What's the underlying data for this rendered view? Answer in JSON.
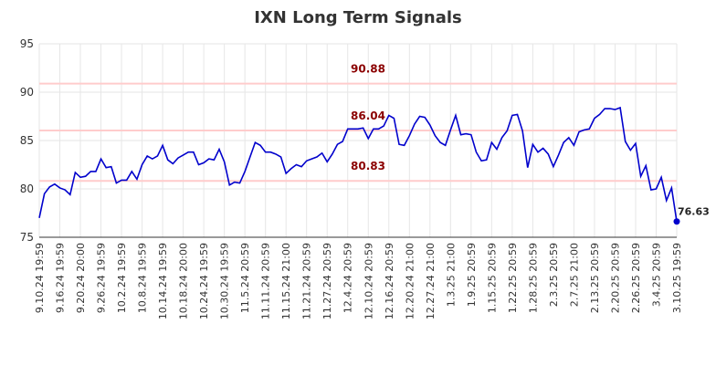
{
  "chart_data": {
    "type": "line",
    "title": "IXN Long Term Signals",
    "categories": [
      "9.10.24 19:59",
      null,
      null,
      null,
      "9.16.24 19:59",
      null,
      null,
      null,
      "9.20.24 20:00",
      null,
      null,
      null,
      "9.26.24 19:59",
      null,
      null,
      null,
      "10.2.24 19:59",
      null,
      null,
      null,
      "10.8.24 19:59",
      null,
      null,
      null,
      "10.14.24 19:59",
      null,
      null,
      null,
      "10.18.24 20:00",
      null,
      null,
      null,
      "10.24.24 19:59",
      null,
      null,
      null,
      "10.30.24 19:59",
      null,
      null,
      null,
      "11.5.24 20:59",
      null,
      null,
      null,
      "11.11.24 20:59",
      null,
      null,
      null,
      "11.15.24 21:00",
      null,
      null,
      null,
      "11.21.24 20:59",
      null,
      null,
      null,
      "11.27.24 20:59",
      null,
      null,
      null,
      "12.4.24 20:59",
      null,
      null,
      null,
      "12.10.24 20:59",
      null,
      null,
      null,
      "12.16.24 20:59",
      null,
      null,
      null,
      "12.20.24 21:00",
      null,
      null,
      null,
      "12.27.24 21:00",
      null,
      null,
      null,
      "1.3.25 21:00",
      null,
      null,
      null,
      "1.9.25 20:59",
      null,
      null,
      null,
      "1.15.25 20:59",
      null,
      null,
      null,
      "1.22.25 20:59",
      null,
      null,
      null,
      "1.28.25 20:59",
      null,
      null,
      null,
      "2.3.25 20:59",
      null,
      null,
      null,
      "2.7.25 21:00",
      null,
      null,
      null,
      "2.13.25 20:59",
      null,
      null,
      null,
      "2.20.25 20:59",
      null,
      null,
      null,
      "2.26.25 20:59",
      null,
      null,
      null,
      "3.4.25 20:59",
      null,
      null,
      null,
      "3.10.25 19:59"
    ],
    "series": [
      {
        "name": "IXN",
        "color": "#0000cc",
        "values": [
          77.0,
          79.5,
          80.2,
          80.5,
          80.1,
          79.9,
          79.4,
          81.7,
          81.2,
          81.3,
          81.8,
          81.8,
          83.1,
          82.2,
          82.3,
          80.6,
          80.9,
          80.9,
          81.8,
          81.0,
          82.5,
          83.4,
          83.1,
          83.4,
          84.5,
          83.0,
          82.6,
          83.2,
          83.5,
          83.8,
          83.8,
          82.5,
          82.7,
          83.1,
          83.0,
          84.1,
          82.8,
          80.4,
          80.7,
          80.6,
          81.8,
          83.3,
          84.8,
          84.5,
          83.8,
          83.8,
          83.6,
          83.3,
          81.6,
          82.1,
          82.5,
          82.3,
          82.9,
          83.1,
          83.3,
          83.7,
          82.8,
          83.6,
          84.6,
          84.9,
          86.2,
          86.2,
          86.2,
          86.3,
          85.2,
          86.2,
          86.2,
          86.5,
          87.6,
          87.3,
          84.6,
          84.5,
          85.5,
          86.7,
          87.5,
          87.4,
          86.6,
          85.5,
          84.8,
          84.5,
          86.1,
          87.6,
          85.6,
          85.7,
          85.6,
          83.8,
          82.9,
          83.0,
          84.8,
          84.1,
          85.3,
          86.0,
          87.6,
          87.7,
          86.0,
          82.2,
          84.6,
          83.8,
          84.2,
          83.6,
          82.3,
          83.5,
          84.8,
          85.3,
          84.5,
          85.9,
          86.1,
          86.2,
          87.3,
          87.7,
          88.3,
          88.3,
          88.2,
          88.4,
          84.9,
          84.0,
          84.7,
          81.3,
          82.4,
          79.9,
          80.0,
          81.2,
          78.8,
          80.1,
          76.63
        ]
      }
    ],
    "hlines": [
      90.88,
      86.04,
      80.83
    ],
    "hline_color": "#ffcccc",
    "hline_label_color": "#8b0000",
    "ylim": [
      75,
      95
    ],
    "yticks": [
      75,
      80,
      85,
      90,
      95
    ],
    "grid": true
  }
}
